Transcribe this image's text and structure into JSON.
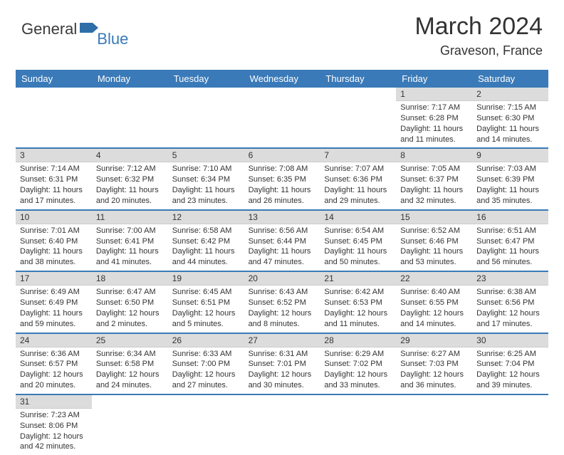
{
  "logo": {
    "text1": "General",
    "text2": "Blue",
    "flag_color": "#2f6fa8"
  },
  "title": {
    "month_year": "March 2024",
    "location": "Graveson, France"
  },
  "colors": {
    "header_bg": "#3a7ab8",
    "header_text": "#ffffff",
    "daynum_bg": "#dcdcdc",
    "body_text": "#333333",
    "row_divider": "#3a7ab8",
    "background": "#ffffff"
  },
  "typography": {
    "title_fontsize": 34,
    "location_fontsize": 18,
    "dayname_fontsize": 13,
    "daynum_fontsize": 12,
    "body_fontsize": 11
  },
  "daynames": [
    "Sunday",
    "Monday",
    "Tuesday",
    "Wednesday",
    "Thursday",
    "Friday",
    "Saturday"
  ],
  "weeks": [
    [
      null,
      null,
      null,
      null,
      null,
      {
        "n": "1",
        "sr": "Sunrise: 7:17 AM",
        "ss": "Sunset: 6:28 PM",
        "d1": "Daylight: 11 hours",
        "d2": "and 11 minutes."
      },
      {
        "n": "2",
        "sr": "Sunrise: 7:15 AM",
        "ss": "Sunset: 6:30 PM",
        "d1": "Daylight: 11 hours",
        "d2": "and 14 minutes."
      }
    ],
    [
      {
        "n": "3",
        "sr": "Sunrise: 7:14 AM",
        "ss": "Sunset: 6:31 PM",
        "d1": "Daylight: 11 hours",
        "d2": "and 17 minutes."
      },
      {
        "n": "4",
        "sr": "Sunrise: 7:12 AM",
        "ss": "Sunset: 6:32 PM",
        "d1": "Daylight: 11 hours",
        "d2": "and 20 minutes."
      },
      {
        "n": "5",
        "sr": "Sunrise: 7:10 AM",
        "ss": "Sunset: 6:34 PM",
        "d1": "Daylight: 11 hours",
        "d2": "and 23 minutes."
      },
      {
        "n": "6",
        "sr": "Sunrise: 7:08 AM",
        "ss": "Sunset: 6:35 PM",
        "d1": "Daylight: 11 hours",
        "d2": "and 26 minutes."
      },
      {
        "n": "7",
        "sr": "Sunrise: 7:07 AM",
        "ss": "Sunset: 6:36 PM",
        "d1": "Daylight: 11 hours",
        "d2": "and 29 minutes."
      },
      {
        "n": "8",
        "sr": "Sunrise: 7:05 AM",
        "ss": "Sunset: 6:37 PM",
        "d1": "Daylight: 11 hours",
        "d2": "and 32 minutes."
      },
      {
        "n": "9",
        "sr": "Sunrise: 7:03 AM",
        "ss": "Sunset: 6:39 PM",
        "d1": "Daylight: 11 hours",
        "d2": "and 35 minutes."
      }
    ],
    [
      {
        "n": "10",
        "sr": "Sunrise: 7:01 AM",
        "ss": "Sunset: 6:40 PM",
        "d1": "Daylight: 11 hours",
        "d2": "and 38 minutes."
      },
      {
        "n": "11",
        "sr": "Sunrise: 7:00 AM",
        "ss": "Sunset: 6:41 PM",
        "d1": "Daylight: 11 hours",
        "d2": "and 41 minutes."
      },
      {
        "n": "12",
        "sr": "Sunrise: 6:58 AM",
        "ss": "Sunset: 6:42 PM",
        "d1": "Daylight: 11 hours",
        "d2": "and 44 minutes."
      },
      {
        "n": "13",
        "sr": "Sunrise: 6:56 AM",
        "ss": "Sunset: 6:44 PM",
        "d1": "Daylight: 11 hours",
        "d2": "and 47 minutes."
      },
      {
        "n": "14",
        "sr": "Sunrise: 6:54 AM",
        "ss": "Sunset: 6:45 PM",
        "d1": "Daylight: 11 hours",
        "d2": "and 50 minutes."
      },
      {
        "n": "15",
        "sr": "Sunrise: 6:52 AM",
        "ss": "Sunset: 6:46 PM",
        "d1": "Daylight: 11 hours",
        "d2": "and 53 minutes."
      },
      {
        "n": "16",
        "sr": "Sunrise: 6:51 AM",
        "ss": "Sunset: 6:47 PM",
        "d1": "Daylight: 11 hours",
        "d2": "and 56 minutes."
      }
    ],
    [
      {
        "n": "17",
        "sr": "Sunrise: 6:49 AM",
        "ss": "Sunset: 6:49 PM",
        "d1": "Daylight: 11 hours",
        "d2": "and 59 minutes."
      },
      {
        "n": "18",
        "sr": "Sunrise: 6:47 AM",
        "ss": "Sunset: 6:50 PM",
        "d1": "Daylight: 12 hours",
        "d2": "and 2 minutes."
      },
      {
        "n": "19",
        "sr": "Sunrise: 6:45 AM",
        "ss": "Sunset: 6:51 PM",
        "d1": "Daylight: 12 hours",
        "d2": "and 5 minutes."
      },
      {
        "n": "20",
        "sr": "Sunrise: 6:43 AM",
        "ss": "Sunset: 6:52 PM",
        "d1": "Daylight: 12 hours",
        "d2": "and 8 minutes."
      },
      {
        "n": "21",
        "sr": "Sunrise: 6:42 AM",
        "ss": "Sunset: 6:53 PM",
        "d1": "Daylight: 12 hours",
        "d2": "and 11 minutes."
      },
      {
        "n": "22",
        "sr": "Sunrise: 6:40 AM",
        "ss": "Sunset: 6:55 PM",
        "d1": "Daylight: 12 hours",
        "d2": "and 14 minutes."
      },
      {
        "n": "23",
        "sr": "Sunrise: 6:38 AM",
        "ss": "Sunset: 6:56 PM",
        "d1": "Daylight: 12 hours",
        "d2": "and 17 minutes."
      }
    ],
    [
      {
        "n": "24",
        "sr": "Sunrise: 6:36 AM",
        "ss": "Sunset: 6:57 PM",
        "d1": "Daylight: 12 hours",
        "d2": "and 20 minutes."
      },
      {
        "n": "25",
        "sr": "Sunrise: 6:34 AM",
        "ss": "Sunset: 6:58 PM",
        "d1": "Daylight: 12 hours",
        "d2": "and 24 minutes."
      },
      {
        "n": "26",
        "sr": "Sunrise: 6:33 AM",
        "ss": "Sunset: 7:00 PM",
        "d1": "Daylight: 12 hours",
        "d2": "and 27 minutes."
      },
      {
        "n": "27",
        "sr": "Sunrise: 6:31 AM",
        "ss": "Sunset: 7:01 PM",
        "d1": "Daylight: 12 hours",
        "d2": "and 30 minutes."
      },
      {
        "n": "28",
        "sr": "Sunrise: 6:29 AM",
        "ss": "Sunset: 7:02 PM",
        "d1": "Daylight: 12 hours",
        "d2": "and 33 minutes."
      },
      {
        "n": "29",
        "sr": "Sunrise: 6:27 AM",
        "ss": "Sunset: 7:03 PM",
        "d1": "Daylight: 12 hours",
        "d2": "and 36 minutes."
      },
      {
        "n": "30",
        "sr": "Sunrise: 6:25 AM",
        "ss": "Sunset: 7:04 PM",
        "d1": "Daylight: 12 hours",
        "d2": "and 39 minutes."
      }
    ],
    [
      {
        "n": "31",
        "sr": "Sunrise: 7:23 AM",
        "ss": "Sunset: 8:06 PM",
        "d1": "Daylight: 12 hours",
        "d2": "and 42 minutes."
      },
      null,
      null,
      null,
      null,
      null,
      null
    ]
  ]
}
